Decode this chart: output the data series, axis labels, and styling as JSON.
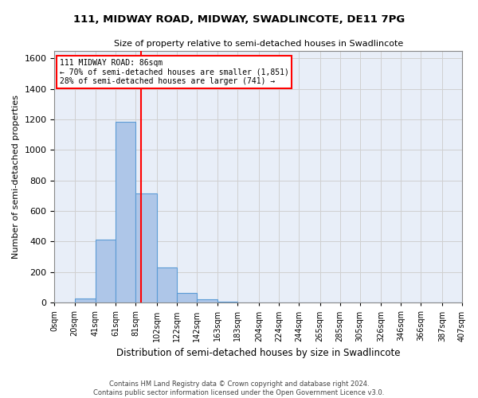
{
  "title1": "111, MIDWAY ROAD, MIDWAY, SWADLINCOTE, DE11 7PG",
  "title2": "Size of property relative to semi-detached houses in Swadlincote",
  "xlabel": "Distribution of semi-detached houses by size in Swadlincote",
  "ylabel": "Number of semi-detached properties",
  "footnote1": "Contains HM Land Registry data © Crown copyright and database right 2024.",
  "footnote2": "Contains public sector information licensed under the Open Government Licence v3.0.",
  "annotation_line1": "111 MIDWAY ROAD: 86sqm",
  "annotation_line2": "← 70% of semi-detached houses are smaller (1,851)",
  "annotation_line3": "28% of semi-detached houses are larger (741) →",
  "property_value": 86,
  "bin_edges": [
    0,
    20,
    41,
    61,
    81,
    102,
    122,
    142,
    163,
    183,
    204,
    224,
    244,
    265,
    285,
    305,
    326,
    346,
    366,
    387,
    407
  ],
  "bin_counts": [
    3,
    30,
    415,
    1182,
    716,
    230,
    65,
    20,
    5,
    2,
    1,
    0,
    0,
    0,
    0,
    0,
    0,
    0,
    0,
    0
  ],
  "bar_color": "#aec6e8",
  "bar_edge_color": "#5b9bd5",
  "vline_color": "red",
  "vline_x": 86,
  "ylim": [
    0,
    1650
  ],
  "yticks": [
    0,
    200,
    400,
    600,
    800,
    1000,
    1200,
    1400,
    1600
  ],
  "xtick_labels": [
    "0sqm",
    "20sqm",
    "41sqm",
    "61sqm",
    "81sqm",
    "102sqm",
    "122sqm",
    "142sqm",
    "163sqm",
    "183sqm",
    "204sqm",
    "224sqm",
    "244sqm",
    "265sqm",
    "285sqm",
    "305sqm",
    "326sqm",
    "346sqm",
    "366sqm",
    "387sqm",
    "407sqm"
  ],
  "grid_color": "#d0d0d0",
  "background_color": "#e8eef8"
}
